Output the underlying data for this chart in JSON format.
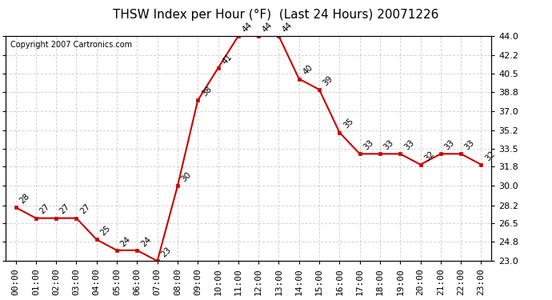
{
  "title": "THSW Index per Hour (°F)  (Last 24 Hours) 20071226",
  "copyright": "Copyright 2007 Cartronics.com",
  "hours": [
    "00:00",
    "01:00",
    "02:00",
    "03:00",
    "04:00",
    "05:00",
    "06:00",
    "07:00",
    "08:00",
    "09:00",
    "10:00",
    "11:00",
    "12:00",
    "13:00",
    "14:00",
    "15:00",
    "16:00",
    "17:00",
    "18:00",
    "19:00",
    "20:00",
    "21:00",
    "22:00",
    "23:00"
  ],
  "values": [
    28,
    27,
    27,
    27,
    25,
    24,
    24,
    23,
    30,
    38,
    41,
    44,
    44,
    44,
    40,
    39,
    35,
    33,
    33,
    33,
    32,
    33,
    33,
    32
  ],
  "ylim": [
    23.0,
    44.0
  ],
  "yticks": [
    23.0,
    24.8,
    26.5,
    28.2,
    30.0,
    31.8,
    33.5,
    35.2,
    37.0,
    38.8,
    40.5,
    42.2,
    44.0
  ],
  "line_color": "#cc0000",
  "marker_color": "#cc0000",
  "bg_color": "#ffffff",
  "grid_color": "#bbbbbb",
  "title_fontsize": 11,
  "copyright_fontsize": 7,
  "label_fontsize": 7.5,
  "tick_fontsize": 8
}
